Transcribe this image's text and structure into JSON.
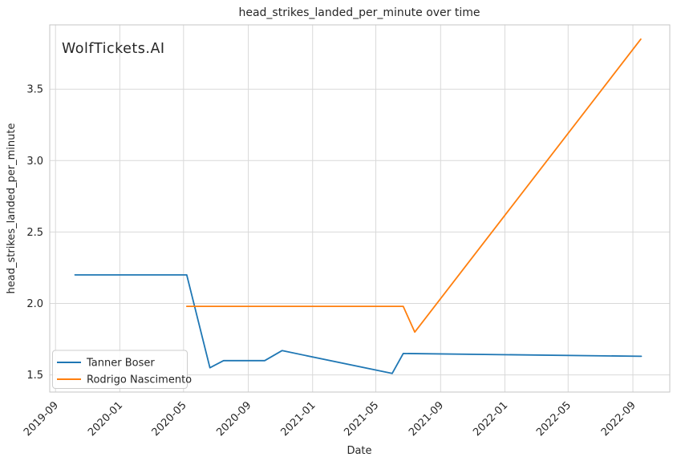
{
  "watermark": {
    "text": "WolfTickets.AI",
    "color": "#c9c9c9"
  },
  "figure": {
    "background": "#ffffff",
    "grid_color": "#d9d9d9",
    "spine_color": "#c6c6c6",
    "text_color": "#262626"
  },
  "chart_data": {
    "type": "line",
    "title": "head_strikes_landed_per_minute over time",
    "xlabel": "Date",
    "ylabel": "head_strikes_landed_per_minute",
    "grid": true,
    "legend_position": "lower left",
    "xlim": [
      "2019-08-21",
      "2022-11-10"
    ],
    "ylim": [
      1.38,
      3.95
    ],
    "x_ticks": [
      {
        "date": "2019-09-01",
        "label": "2019-09"
      },
      {
        "date": "2020-01-01",
        "label": "2020-01"
      },
      {
        "date": "2020-05-01",
        "label": "2020-05"
      },
      {
        "date": "2020-09-01",
        "label": "2020-09"
      },
      {
        "date": "2021-01-01",
        "label": "2021-01"
      },
      {
        "date": "2021-05-01",
        "label": "2021-05"
      },
      {
        "date": "2021-09-01",
        "label": "2021-09"
      },
      {
        "date": "2022-01-01",
        "label": "2022-01"
      },
      {
        "date": "2022-05-01",
        "label": "2022-05"
      },
      {
        "date": "2022-09-01",
        "label": "2022-09"
      }
    ],
    "y_ticks": [
      {
        "value": 1.5,
        "label": "1.5"
      },
      {
        "value": 2.0,
        "label": "2.0"
      },
      {
        "value": 2.5,
        "label": "2.5"
      },
      {
        "value": 3.0,
        "label": "3.0"
      },
      {
        "value": 3.5,
        "label": "3.5"
      }
    ],
    "series": [
      {
        "name": "Tanner Boser",
        "color": "#1f77b4",
        "points": [
          [
            "2019-10-08",
            2.2
          ],
          [
            "2020-05-07",
            2.2
          ],
          [
            "2020-06-20",
            1.55
          ],
          [
            "2020-07-16",
            1.6
          ],
          [
            "2020-10-02",
            1.6
          ],
          [
            "2020-11-04",
            1.67
          ],
          [
            "2021-06-01",
            1.51
          ],
          [
            "2021-06-22",
            1.65
          ],
          [
            "2022-09-17",
            1.63
          ]
        ]
      },
      {
        "name": "Rodrigo Nascimento",
        "color": "#ff7f0e",
        "points": [
          [
            "2020-05-07",
            1.98
          ],
          [
            "2021-06-22",
            1.98
          ],
          [
            "2021-07-14",
            1.8
          ],
          [
            "2022-09-16",
            3.85
          ]
        ]
      }
    ]
  }
}
